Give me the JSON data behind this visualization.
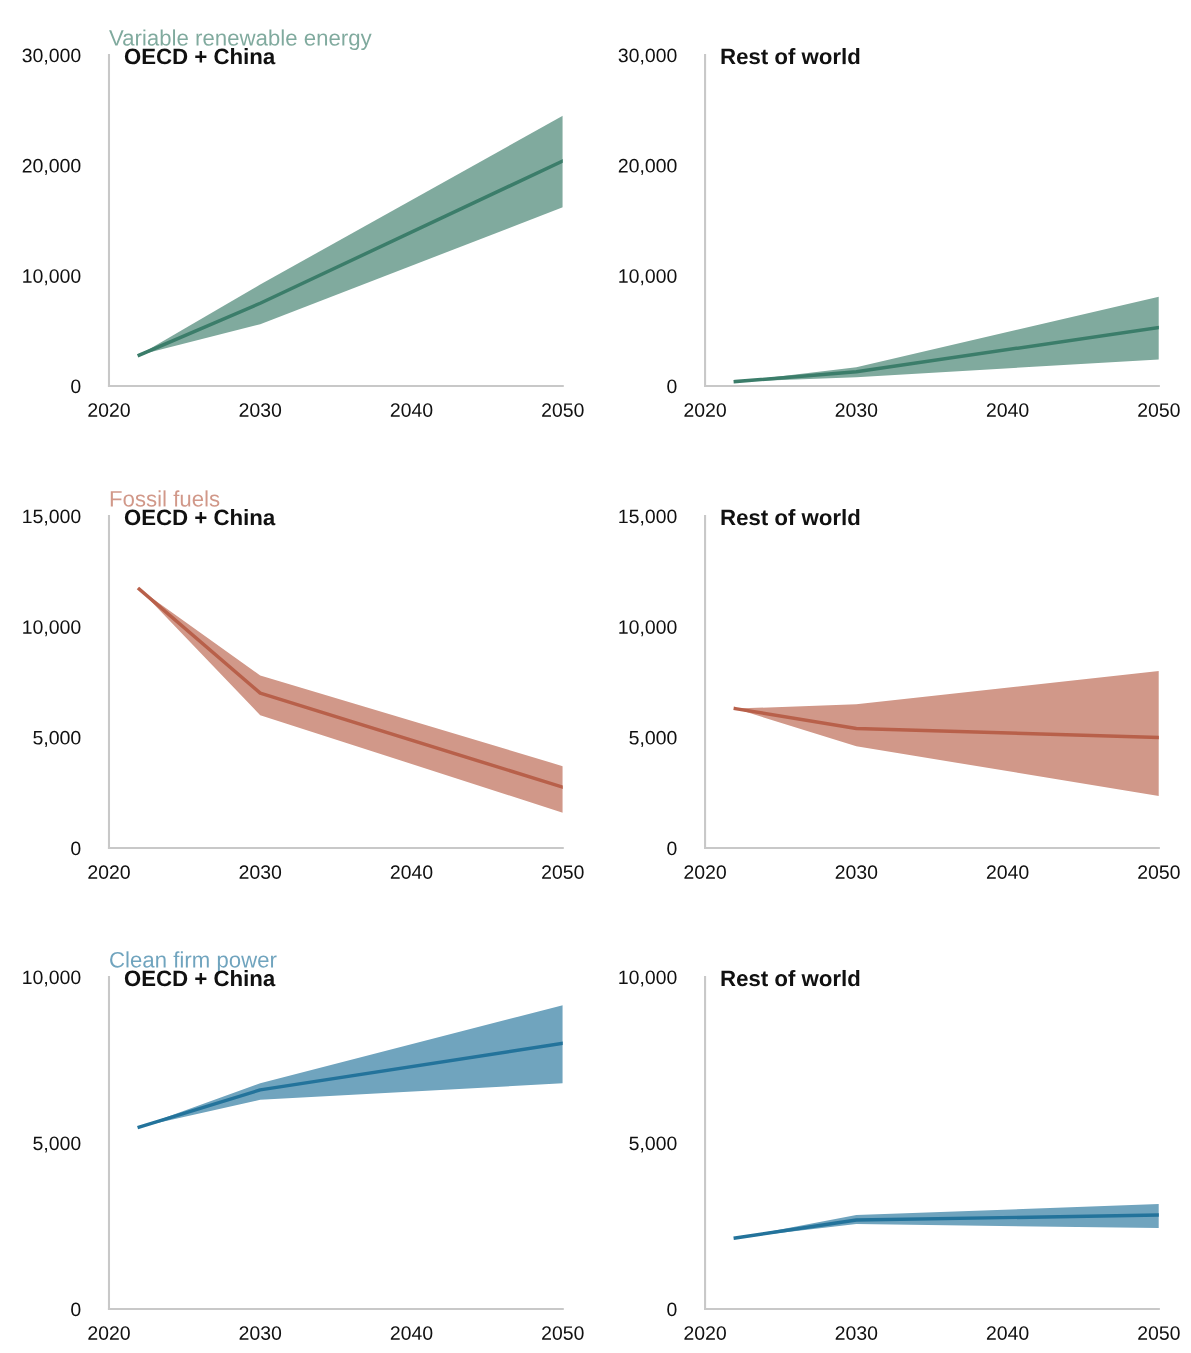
{
  "chart_data": [
    {
      "type": "line",
      "title": "Variable renewable energy",
      "subtitle": "OECD + China",
      "x": [
        2022,
        2030,
        2050
      ],
      "series": [
        {
          "color": "#3b7d6a",
          "values": [
            2800,
            7500,
            20400
          ],
          "lower": [
            2800,
            5600,
            16200
          ],
          "upper": [
            2800,
            9200,
            24500
          ]
        }
      ],
      "xlim": [
        2020,
        2050
      ],
      "xticks": [
        2020,
        2030,
        2040,
        2050
      ],
      "ylim": [
        0,
        30000
      ],
      "yticks": [
        {
          "value": 0,
          "label": "0"
        },
        {
          "value": 10000,
          "label": "10,000"
        },
        {
          "value": 20000,
          "label": "20,000"
        },
        {
          "value": 30000,
          "label": "30,000"
        }
      ]
    },
    {
      "type": "line",
      "subtitle": "Rest of world",
      "x": [
        2022,
        2030,
        2050
      ],
      "series": [
        {
          "color": "#3b7d6a",
          "values": [
            400,
            1300,
            5300
          ],
          "lower": [
            400,
            800,
            2400
          ],
          "upper": [
            400,
            1700,
            8100
          ]
        }
      ],
      "xlim": [
        2020,
        2050
      ],
      "xticks": [
        2020,
        2030,
        2040,
        2050
      ],
      "ylim": [
        0,
        30000
      ],
      "yticks": [
        {
          "value": 0,
          "label": "0"
        },
        {
          "value": 10000,
          "label": "10,000"
        },
        {
          "value": 20000,
          "label": "20,000"
        },
        {
          "value": 30000,
          "label": "30,000"
        }
      ]
    },
    {
      "type": "line",
      "title": "Fossil fuels",
      "subtitle": "OECD + China",
      "x": [
        2022,
        2030,
        2050
      ],
      "series": [
        {
          "color": "#b8604a",
          "values": [
            11700,
            7000,
            2750
          ],
          "lower": [
            11700,
            6000,
            1600
          ],
          "upper": [
            11700,
            7800,
            3700
          ]
        }
      ],
      "xlim": [
        2020,
        2050
      ],
      "xticks": [
        2020,
        2030,
        2040,
        2050
      ],
      "ylim": [
        0,
        15000
      ],
      "yticks": [
        {
          "value": 0,
          "label": "0"
        },
        {
          "value": 5000,
          "label": "5,000"
        },
        {
          "value": 10000,
          "label": "10,000"
        },
        {
          "value": 15000,
          "label": "15,000"
        }
      ]
    },
    {
      "type": "line",
      "subtitle": "Rest of world",
      "x": [
        2022,
        2030,
        2050
      ],
      "series": [
        {
          "color": "#b8604a",
          "values": [
            6300,
            5400,
            5000
          ],
          "lower": [
            6300,
            4600,
            2350
          ],
          "upper": [
            6300,
            6500,
            8000
          ]
        }
      ],
      "xlim": [
        2020,
        2050
      ],
      "xticks": [
        2020,
        2030,
        2040,
        2050
      ],
      "ylim": [
        0,
        15000
      ],
      "yticks": [
        {
          "value": 0,
          "label": "0"
        },
        {
          "value": 5000,
          "label": "5,000"
        },
        {
          "value": 10000,
          "label": "10,000"
        },
        {
          "value": 15000,
          "label": "15,000"
        }
      ]
    },
    {
      "type": "line",
      "title": "Clean firm power",
      "subtitle": "OECD + China",
      "x": [
        2022,
        2030,
        2050
      ],
      "series": [
        {
          "color": "#23739b",
          "values": [
            5480,
            6600,
            8000
          ],
          "lower": [
            5480,
            6300,
            6800
          ],
          "upper": [
            5480,
            6800,
            9150
          ]
        }
      ],
      "xlim": [
        2020,
        2050
      ],
      "xticks": [
        2020,
        2030,
        2040,
        2050
      ],
      "ylim": [
        0,
        10000
      ],
      "yticks": [
        {
          "value": 0,
          "label": "0"
        },
        {
          "value": 5000,
          "label": "5,000"
        },
        {
          "value": 10000,
          "label": "10,000"
        }
      ]
    },
    {
      "type": "line",
      "subtitle": "Rest of world",
      "x": [
        2022,
        2030,
        2050
      ],
      "series": [
        {
          "color": "#23739b",
          "values": [
            2140,
            2680,
            2830
          ],
          "lower": [
            2140,
            2560,
            2440
          ],
          "upper": [
            2140,
            2830,
            3160
          ]
        }
      ],
      "xlim": [
        2020,
        2050
      ],
      "xticks": [
        2020,
        2030,
        2040,
        2050
      ],
      "ylim": [
        0,
        10000
      ],
      "yticks": [
        {
          "value": 0,
          "label": "0"
        },
        {
          "value": 5000,
          "label": "5,000"
        },
        {
          "value": 10000,
          "label": "10,000"
        }
      ]
    }
  ]
}
